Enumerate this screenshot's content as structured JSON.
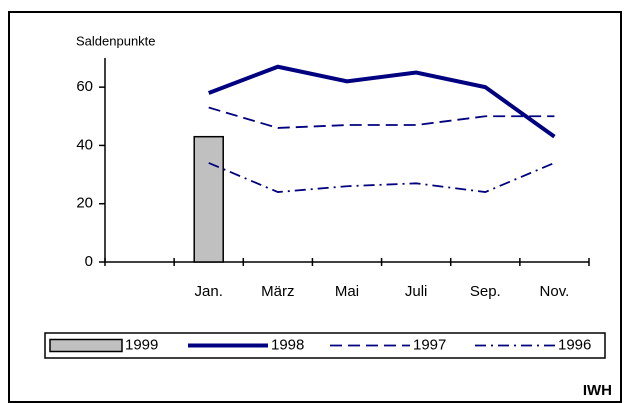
{
  "chart_data": {
    "type": "line",
    "y_label": "Saldenpunkte",
    "source": "IWH",
    "categories": [
      null,
      "Jan.",
      "März",
      "Mai",
      "Juli",
      "Sep.",
      "Nov."
    ],
    "ylim": [
      0,
      70
    ],
    "yticks": [
      0,
      20,
      40,
      60
    ],
    "series": [
      {
        "name": "1999",
        "type": "bar",
        "color": "#c0c0c0",
        "values": [
          null,
          43,
          null,
          null,
          null,
          null,
          null
        ]
      },
      {
        "name": "1998",
        "type": "line",
        "color": "#000080",
        "dash": "solid",
        "values": [
          null,
          58,
          67,
          62,
          65,
          60,
          43
        ]
      },
      {
        "name": "1997",
        "type": "line",
        "color": "#000080",
        "dash": "dashed",
        "values": [
          null,
          53,
          46,
          47,
          47,
          50,
          50
        ]
      },
      {
        "name": "1996",
        "type": "line",
        "color": "#000080",
        "dash": "dashdot",
        "values": [
          null,
          34,
          24,
          26,
          27,
          24,
          34
        ]
      }
    ]
  }
}
